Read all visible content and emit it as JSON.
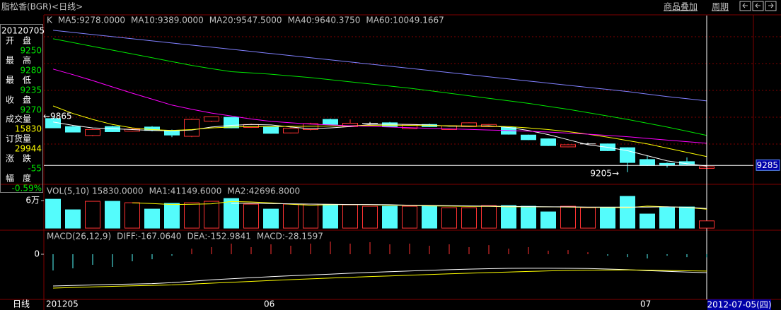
{
  "header": {
    "title": "脂松香(BGR)<日线>",
    "menu": [
      "商品叠加",
      "周期"
    ]
  },
  "info": {
    "date": "20120705",
    "rows": [
      {
        "label": "开　盘",
        "value": 9250
      },
      {
        "label": "最　高",
        "value": 9280
      },
      {
        "label": "最　低",
        "value": 9235
      },
      {
        "label": "收　盘",
        "value": 9270
      },
      {
        "label": "成交量",
        "value": 15830
      },
      {
        "label": "订货量",
        "value": 29944
      },
      {
        "label": "涨　跌",
        "value": -55
      },
      {
        "label": "幅　度",
        "value": "-0.59%"
      }
    ]
  },
  "footer": {
    "period": "日线",
    "date": "2012-07-05(四)"
  },
  "chart_data": [
    {
      "type": "candlestick",
      "title": "K",
      "categories": [
        "201205",
        null,
        null,
        null,
        null,
        null,
        null,
        null,
        null,
        null,
        null,
        "06",
        null,
        null,
        null,
        null,
        null,
        null,
        null,
        null,
        null,
        null,
        null,
        null,
        null,
        null,
        null,
        null,
        null,
        null,
        "07",
        null,
        null,
        null
      ],
      "open": [
        9840,
        9745,
        9640,
        9745,
        9690,
        9740,
        9700,
        9630,
        9810,
        9855,
        9735,
        9745,
        9670,
        9710,
        9830,
        9745,
        9785,
        9790,
        9720,
        9770,
        9710,
        9745,
        9745,
        9735,
        9645,
        9600,
        9505,
        9540,
        9540,
        9495,
        9355,
        9310,
        9330,
        9250
      ],
      "high": [
        9865,
        9760,
        9720,
        9755,
        9725,
        9750,
        9710,
        9840,
        9862,
        9860,
        9780,
        9750,
        9735,
        9790,
        9840,
        9830,
        9800,
        9800,
        9775,
        9780,
        9760,
        9795,
        9775,
        9740,
        9650,
        9605,
        9535,
        9555,
        9545,
        9500,
        9400,
        9320,
        9380,
        9280
      ],
      "low": [
        9730,
        9680,
        9630,
        9680,
        9685,
        9690,
        9620,
        9620,
        9800,
        9725,
        9730,
        9660,
        9665,
        9700,
        9765,
        9740,
        9770,
        9740,
        9715,
        9740,
        9705,
        9740,
        9740,
        9650,
        9585,
        9515,
        9500,
        9530,
        9455,
        9205,
        9280,
        9260,
        9285,
        9235
      ],
      "close": [
        9730,
        9680,
        9710,
        9685,
        9715,
        9700,
        9645,
        9830,
        9860,
        9730,
        9770,
        9665,
        9725,
        9780,
        9770,
        9785,
        9785,
        9745,
        9770,
        9745,
        9755,
        9790,
        9770,
        9655,
        9590,
        9520,
        9530,
        9540,
        9460,
        9320,
        9285,
        9290,
        9295,
        9270
      ],
      "up_color": "#ff3232",
      "down_color": "#54fcfc",
      "series": [
        {
          "name": "MA5:9278.0000",
          "color": "#ffffff",
          "values": [
            9800,
            9760,
            9730,
            9720,
            9710,
            9700,
            9695,
            9705,
            9740,
            9760,
            9770,
            9765,
            9740,
            9720,
            9730,
            9745,
            9770,
            9775,
            9770,
            9765,
            9750,
            9750,
            9755,
            9735,
            9700,
            9650,
            9590,
            9530,
            9500,
            9460,
            9400,
            9340,
            9305,
            9278
          ]
        },
        {
          "name": "MA10:9389.0000",
          "color": "#ffff00",
          "values": [
            9990,
            9900,
            9830,
            9770,
            9730,
            9710,
            9700,
            9710,
            9730,
            9740,
            9745,
            9745,
            9748,
            9750,
            9752,
            9755,
            9760,
            9762,
            9760,
            9758,
            9755,
            9752,
            9750,
            9745,
            9730,
            9710,
            9685,
            9655,
            9620,
            9580,
            9540,
            9490,
            9440,
            9389
          ]
        },
        {
          "name": "MA20:9547.5000",
          "color": "#ff00ff",
          "values": [
            10426,
            10360,
            10290,
            10215,
            10140,
            10070,
            10000,
            9950,
            9905,
            9870,
            9835,
            9807,
            9790,
            9775,
            9765,
            9755,
            9748,
            9740,
            9732,
            9725,
            9718,
            9712,
            9705,
            9698,
            9690,
            9680,
            9668,
            9655,
            9640,
            9625,
            9605,
            9585,
            9567,
            9547.5
          ]
        },
        {
          "name": "MA40:9640.3750",
          "color": "#00e600",
          "values": [
            10785,
            10740,
            10695,
            10650,
            10605,
            10560,
            10515,
            10470,
            10430,
            10395,
            10380,
            10365,
            10345,
            10325,
            10300,
            10275,
            10250,
            10225,
            10200,
            10170,
            10140,
            10110,
            10080,
            10050,
            10020,
            9985,
            9950,
            9910,
            9870,
            9830,
            9785,
            9740,
            9690,
            9640.375
          ]
        },
        {
          "name": "MA60:10049.1667",
          "color": "#8080ff",
          "values": [
            10885,
            10860,
            10835,
            10810,
            10785,
            10760,
            10735,
            10710,
            10685,
            10660,
            10635,
            10610,
            10585,
            10560,
            10535,
            10510,
            10485,
            10460,
            10435,
            10410,
            10385,
            10360,
            10335,
            10310,
            10285,
            10260,
            10235,
            10210,
            10185,
            10160,
            10130,
            10100,
            10075,
            10049.1667
          ]
        }
      ],
      "ylim": [
        9070,
        11060
      ],
      "crosshair": 9285,
      "annotations": [
        "←9865",
        "9205→"
      ]
    },
    {
      "type": "bar",
      "title": "VOL(5,10) 15830.0000",
      "values": [
        63000,
        40000,
        58500,
        58500,
        55400,
        41500,
        54000,
        55400,
        58500,
        64600,
        52300,
        41500,
        52300,
        52300,
        50800,
        50800,
        47700,
        47700,
        47700,
        47700,
        44600,
        44600,
        49200,
        49200,
        47700,
        35400,
        47700,
        44600,
        44600,
        69200,
        30800,
        44600,
        46200,
        15830
      ],
      "series": [
        {
          "name": "MA1:41149.6000",
          "color": "#ffff00",
          "values": [
            null,
            null,
            null,
            null,
            55000,
            53500,
            51500,
            52000,
            53000,
            58000,
            57000,
            55000,
            52000,
            50000,
            51000,
            51500,
            51000,
            50000,
            49500,
            48500,
            48000,
            47500,
            47500,
            46500,
            46500,
            46500,
            46000,
            45000,
            45000,
            44500,
            48000,
            46500,
            45000,
            41149.6
          ]
        },
        {
          "name": "MA2:42696.8000",
          "color": "#ffffff",
          "values": [
            null,
            null,
            null,
            null,
            null,
            null,
            null,
            null,
            null,
            54000,
            54500,
            53500,
            53000,
            52500,
            52000,
            51500,
            51500,
            51000,
            50000,
            49500,
            49000,
            48500,
            48000,
            47500,
            47000,
            46500,
            46500,
            46000,
            46000,
            46000,
            46000,
            46500,
            45500,
            42696.8
          ]
        }
      ],
      "ylim": [
        -3000,
        94000
      ],
      "yticks": [
        {
          "value": 60000,
          "label": "6万"
        }
      ]
    },
    {
      "type": "macd",
      "title": "MACD(26,12,9)",
      "series": [
        {
          "name": "DIFF:-167.0640",
          "color": "#ffffff",
          "values": [
            -288,
            -283,
            -278,
            -274,
            -270,
            -266,
            -258,
            -245,
            -232,
            -222,
            -212,
            -203,
            -195,
            -188,
            -180,
            -172,
            -165,
            -158,
            -152,
            -146,
            -140,
            -135,
            -131,
            -128,
            -127,
            -127,
            -128,
            -130,
            -134,
            -140,
            -148,
            -155,
            -161,
            -167.064
          ]
        },
        {
          "name": "DEA:-152.9841",
          "color": "#ffff00",
          "values": [
            -307,
            -301,
            -296,
            -291,
            -286,
            -282,
            -278,
            -270,
            -262,
            -254,
            -246,
            -238,
            -230,
            -223,
            -216,
            -209,
            -202,
            -196,
            -190,
            -184,
            -178,
            -172,
            -166,
            -161,
            -156,
            -151,
            -147,
            -144,
            -143,
            -142,
            -144,
            -147,
            -150,
            -152.9841
          ]
        },
        {
          "name": "MACD:-28.1597",
          "color": "#c0c0c0",
          "kind": "bar",
          "values": [
            -147,
            -128,
            -96,
            -115,
            -64,
            -45,
            -13,
            51,
            64,
            96,
            64,
            90,
            77,
            96,
            115,
            96,
            109,
            90,
            96,
            77,
            90,
            64,
            83,
            51,
            64,
            32,
            38,
            19,
            -13,
            -26,
            -38,
            -13,
            -26,
            -28.1597
          ]
        }
      ],
      "ylim": [
        -403,
        205
      ],
      "yticks": [
        0
      ]
    }
  ]
}
